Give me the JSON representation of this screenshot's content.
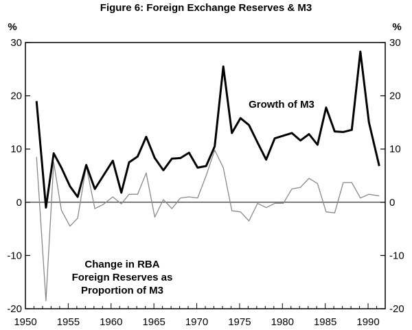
{
  "chart_data": {
    "type": "line",
    "title": "Figure 6: Foreign Exchange Reserves & M3",
    "ylabel_left": "%",
    "ylabel_right": "%",
    "xlim": [
      1950,
      1992
    ],
    "ylim": [
      -20,
      30
    ],
    "x_ticks": [
      "1950",
      "1955",
      "1960",
      "1965",
      "1970",
      "1975",
      "1980",
      "1985",
      "1990"
    ],
    "y_ticks_left": [
      "30",
      "20",
      "10",
      "0",
      "-10",
      "-20"
    ],
    "y_ticks_right": [
      "30",
      "20",
      "10",
      "0",
      "-10",
      "-20"
    ],
    "zero_line": true,
    "series": [
      {
        "name": "Growth of M3",
        "label_lines": [
          "Growth of M3"
        ],
        "color": "#000000",
        "style": "thick",
        "x": [
          1951.3,
          1952.4,
          1953.3,
          1954.2,
          1955.2,
          1956.1,
          1957.1,
          1958.1,
          1959.1,
          1960.2,
          1961.2,
          1962.1,
          1963.1,
          1964.1,
          1965.1,
          1966.1,
          1967.1,
          1968.1,
          1969.1,
          1970.1,
          1971.1,
          1972.1,
          1973.1,
          1974.1,
          1975.1,
          1976.1,
          1977.1,
          1978.1,
          1979.1,
          1980.1,
          1981.1,
          1982.1,
          1983.1,
          1984.1,
          1985.1,
          1986.1,
          1987.1,
          1988.1,
          1989.1,
          1990.1,
          1991.3
        ],
        "y": [
          19,
          -1,
          9.2,
          6.5,
          3,
          1,
          7,
          2.5,
          5,
          7.8,
          1.8,
          7.5,
          8.6,
          12.3,
          8.3,
          6,
          8.2,
          8.3,
          9.3,
          6.5,
          6.8,
          10.5,
          25.5,
          13,
          15.8,
          14.5,
          11.2,
          8,
          12,
          12.5,
          13,
          11.6,
          12.8,
          10.8,
          17.8,
          13.3,
          13.2,
          13.6,
          28.3,
          15,
          6.8
        ]
      },
      {
        "name": "Change in RBA Foreign Reserves as Proportion of M3",
        "label_lines": [
          "Change in RBA",
          "Foreign Reserves as",
          "Proportion of M3"
        ],
        "color": "#888888",
        "style": "thin",
        "x": [
          1951.3,
          1952.4,
          1953.3,
          1954.2,
          1955.2,
          1956.1,
          1957.1,
          1958.1,
          1959.1,
          1960.2,
          1961.2,
          1962.1,
          1963.1,
          1964.1,
          1965.1,
          1966.1,
          1967.1,
          1968.1,
          1969.1,
          1970.1,
          1971.1,
          1972.1,
          1973.1,
          1974.1,
          1975.1,
          1976.1,
          1977.1,
          1978.1,
          1979.1,
          1980.1,
          1981.1,
          1982.1,
          1983.1,
          1984.1,
          1985.1,
          1986.1,
          1987.1,
          1988.1,
          1989.1,
          1990.1,
          1991.3
        ],
        "y": [
          8.5,
          -18.5,
          7.5,
          -1.5,
          -4.5,
          -3,
          6.8,
          -1.2,
          -0.4,
          1,
          -0.3,
          1.5,
          1.5,
          5.5,
          -2.8,
          0.5,
          -1.2,
          0.8,
          1,
          0.8,
          5,
          9.8,
          6.5,
          -1.6,
          -1.8,
          -3.5,
          -0.2,
          -1,
          -0.2,
          -0.2,
          2.5,
          2.8,
          4.5,
          3.5,
          -1.8,
          -2,
          3.7,
          3.7,
          0.8,
          1.5,
          1.2
        ]
      }
    ]
  }
}
